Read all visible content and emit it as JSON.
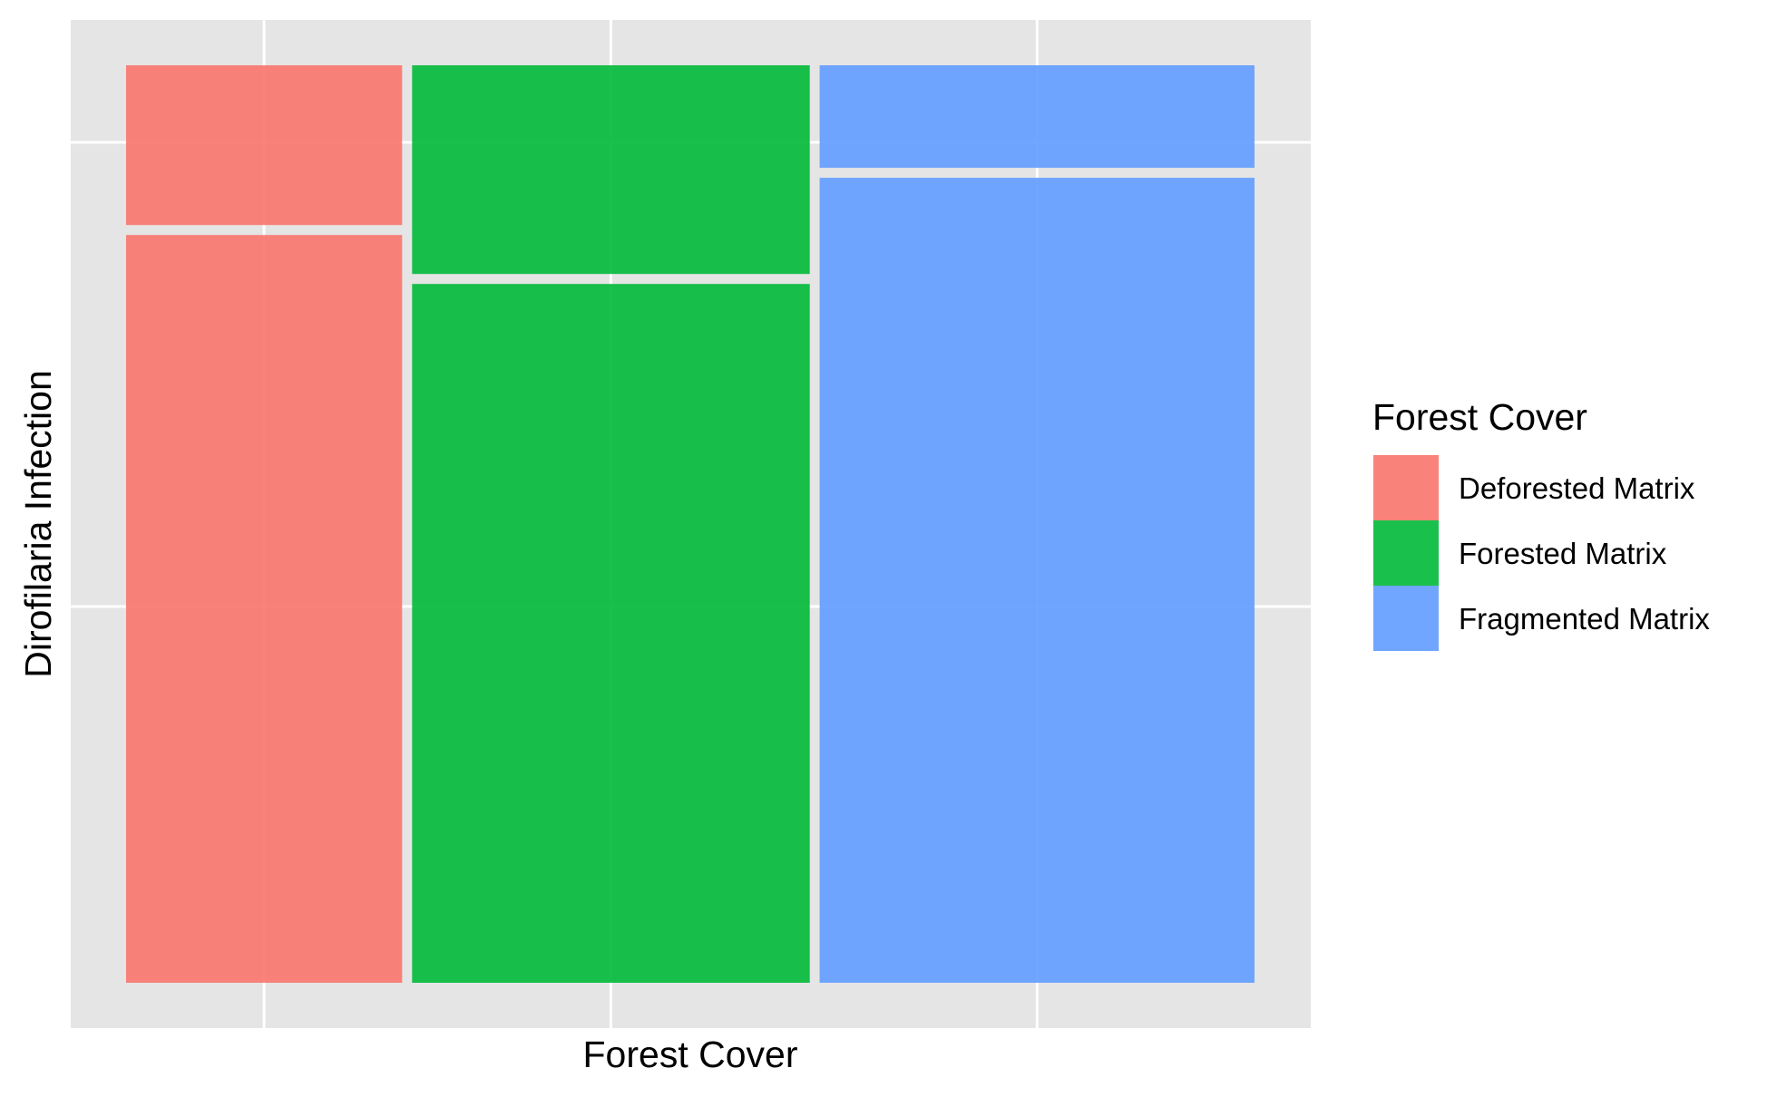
{
  "chart_data": {
    "type": "mosaic",
    "title": "",
    "xlabel": "Forest Cover",
    "ylabel": "Dirofilaria Infection",
    "legend": {
      "title": "Forest Cover",
      "position": "right",
      "entries": [
        {
          "label": "Deforested Matrix",
          "color": "#F8766D"
        },
        {
          "label": "Forested Matrix",
          "color": "#00BA38"
        },
        {
          "label": "Fragmented Matrix",
          "color": "#619CFF"
        }
      ]
    },
    "grid": true,
    "panel_background": "#E5E5E5",
    "fill_alpha": 0.9,
    "categories": [
      "Deforested Matrix",
      "Forested Matrix",
      "Fragmented Matrix"
    ],
    "column_proportions": [
      0.245,
      0.353,
      0.386
    ],
    "segments": [
      {
        "category": "Deforested Matrix",
        "lower_share": 0.824,
        "upper_share": 0.176
      },
      {
        "category": "Forested Matrix",
        "lower_share": 0.77,
        "upper_share": 0.23
      },
      {
        "category": "Fragmented Matrix",
        "lower_share": 0.887,
        "upper_share": 0.113
      }
    ]
  }
}
